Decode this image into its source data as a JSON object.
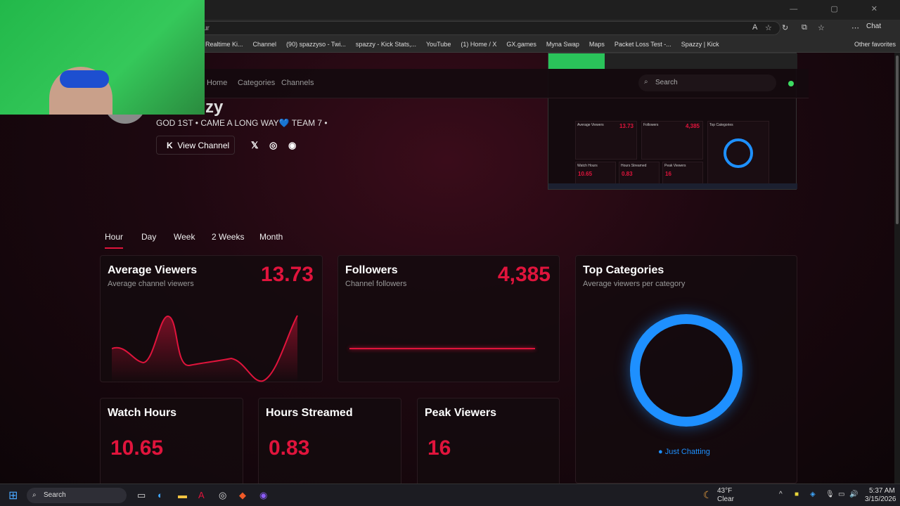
{
  "browser": {
    "url_fragment": "ur",
    "chat_label": "Chat",
    "bookmarks": [
      "Realtime Ki...",
      "Channel",
      "(90) spazzyso - Twi...",
      "spazzy - Kick Stats,...",
      "YouTube",
      "(1) Home / X",
      "GX.games",
      "Myna Swap",
      "Maps",
      "Packet Loss Test -...",
      "Spazzy | Kick"
    ],
    "other_favorites": "Other favorites"
  },
  "nav": {
    "items": [
      "Home",
      "Categories",
      "Channels"
    ],
    "search_placeholder": "Search",
    "status_color": "#3ddc62"
  },
  "channel": {
    "name_partial": "zy",
    "bio": "GOD 1ST • CAME A LONG WAY💙 TEAM 7 •",
    "view_channel": "View Channel"
  },
  "preview": {
    "avg": "13.73",
    "followers": "4,385",
    "watch": "10.65",
    "hours": "0.83",
    "peak": "16",
    "labels": [
      "Average Viewers",
      "Followers",
      "Top Categories",
      "Watch Hours",
      "Hours Streamed",
      "Peak Viewers"
    ]
  },
  "tabs": [
    "Hour",
    "Day",
    "Week",
    "2 Weeks",
    "Month"
  ],
  "active_tab": "Hour",
  "accent": "#e0143c",
  "cards": {
    "avg": {
      "title": "Average Viewers",
      "subtitle": "Average channel viewers",
      "value": "13.73"
    },
    "followers": {
      "title": "Followers",
      "subtitle": "Channel followers",
      "value": "4,385"
    },
    "top": {
      "title": "Top Categories",
      "subtitle": "Average viewers per category",
      "legend": "Just Chatting",
      "color": "#1e90ff"
    },
    "watch": {
      "title": "Watch Hours",
      "value": "10.65"
    },
    "streamed": {
      "title": "Hours Streamed",
      "value": "0.83"
    },
    "peak": {
      "title": "Peak Viewers",
      "value": "16"
    }
  },
  "taskbar": {
    "search": "Search",
    "temp": "43°F",
    "weather": "Clear",
    "time": "5:37 AM",
    "date": "3/15/2026"
  }
}
